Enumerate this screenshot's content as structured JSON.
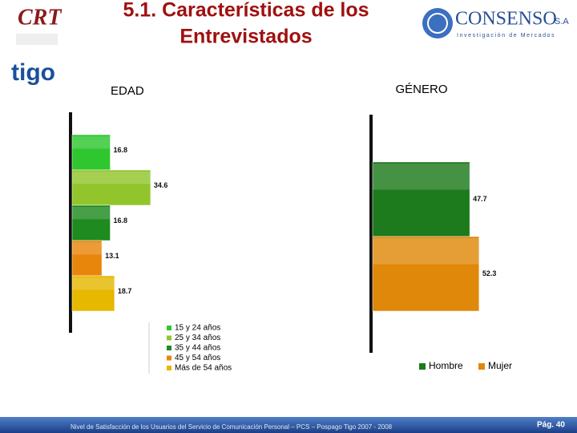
{
  "header": {
    "title_line1": "5.1. Características de los",
    "title_line2": "Entrevistados",
    "logos": {
      "left": "CRT",
      "right": "CONSENSO",
      "right_suffix": "S.A",
      "right_tagline": "Investigación de Mercados",
      "brand": "tigo"
    }
  },
  "chart_data": [
    {
      "type": "bar",
      "orientation": "horizontal",
      "title": "EDAD",
      "categories": [
        "15 y 24 años",
        "25 y 34 años",
        "35 y 44 años",
        "45 y 54 años",
        "Más de 54 años"
      ],
      "values": [
        16.8,
        34.6,
        16.8,
        13.1,
        18.7
      ],
      "colors": [
        "#2fc62f",
        "#92c52c",
        "#1f8a1f",
        "#e8860c",
        "#e6b800"
      ]
    },
    {
      "type": "bar",
      "orientation": "horizontal",
      "title": "GÉNERO",
      "categories": [
        "Hombre",
        "Mujer"
      ],
      "values": [
        47.7,
        52.3
      ],
      "colors": [
        "#1d7a1d",
        "#e0880a"
      ]
    }
  ],
  "footer": {
    "text": "Nivel de Satisfacción de los Usuarios del Servicio de Comunicación Personal – PCS – Pospago Tigo 2007 - 2008",
    "page": "Pág. 40"
  }
}
